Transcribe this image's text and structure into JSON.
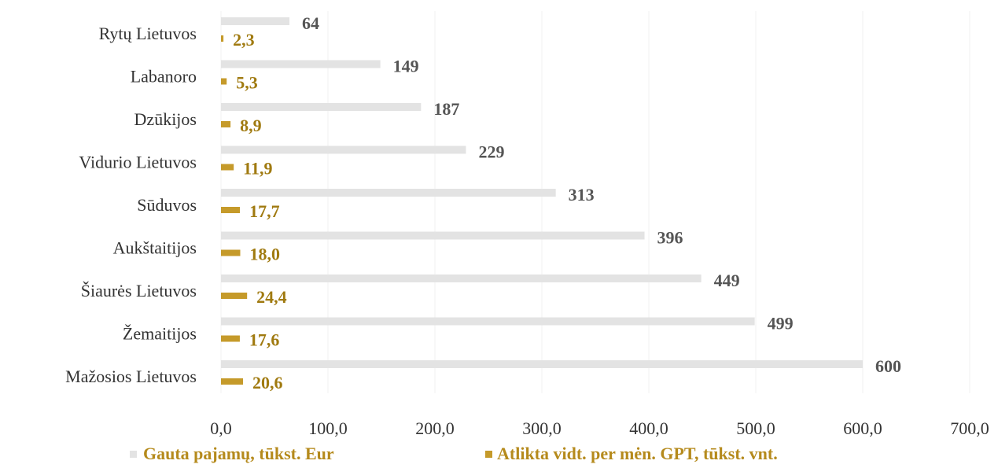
{
  "chart_data": {
    "type": "bar",
    "orientation": "horizontal",
    "categories": [
      "Rytų Lietuvos",
      "Labanoro",
      "Dzūkijos",
      "Vidurio Lietuvos",
      "Sūduvos",
      "Aukštaitijos",
      "Šiaurės Lietuvos",
      "Žemaitijos",
      "Mažosios Lietuvos"
    ],
    "series": [
      {
        "name": "Gauta pajamų, tūkst. Eur",
        "values": [
          64,
          149,
          187,
          229,
          313,
          396,
          449,
          499,
          600
        ],
        "labels": [
          "64",
          "149",
          "187",
          "229",
          "313",
          "396",
          "449",
          "499",
          "600"
        ],
        "color": "#e3e3e3",
        "label_color": "#555555"
      },
      {
        "name": "Atlikta vidt. per mėn. GPT, tūkst. vnt.",
        "values": [
          2.3,
          5.3,
          8.9,
          11.9,
          17.7,
          18.0,
          24.4,
          17.6,
          20.6
        ],
        "labels": [
          "2,3",
          "5,3",
          "8,9",
          "11,9",
          "17,7",
          "18,0",
          "24,4",
          "17,6",
          "20,6"
        ],
        "color": "#c59a2a",
        "label_color": "#a07a10"
      }
    ],
    "xlim": [
      0,
      700
    ],
    "xticks": [
      0,
      100,
      200,
      300,
      400,
      500,
      600,
      700
    ],
    "xtick_labels": [
      "0,0",
      "100,0",
      "200,0",
      "300,0",
      "400,0",
      "500,0",
      "600,0",
      "700,0"
    ],
    "grid": true,
    "legend_position": "bottom",
    "title": "",
    "xlabel": "",
    "ylabel": ""
  }
}
